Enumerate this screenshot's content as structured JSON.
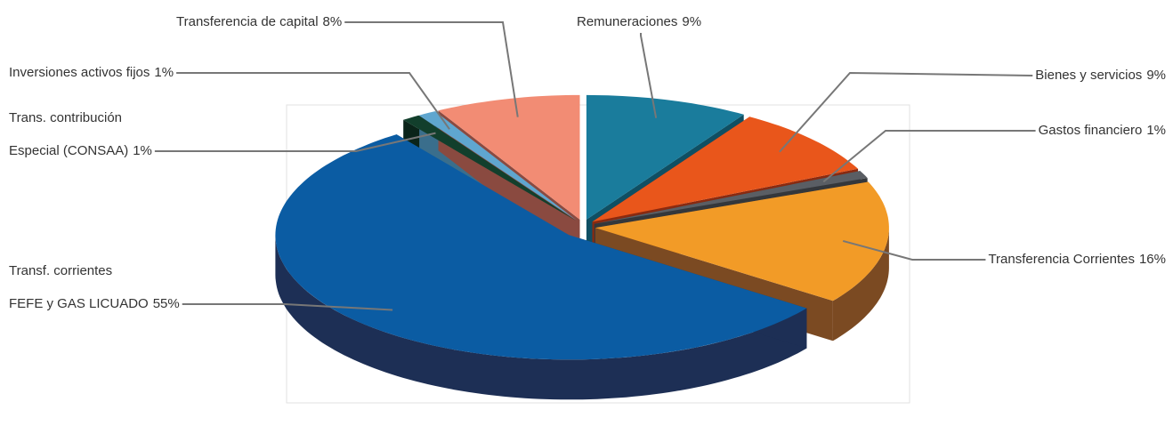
{
  "chart_data": {
    "type": "pie3d",
    "categories": [
      "Remuneraciones",
      "Bienes y servicios",
      "Gastos financiero",
      "Transferencia Corrientes",
      [
        "Transf. corrientes",
        "FEFE y GAS LICUADO"
      ],
      [
        "Trans. contribución",
        "Especial (CONSAA)"
      ],
      "Inversiones activos fijos",
      "Transferencia de capital"
    ],
    "values": [
      9,
      9,
      1,
      16,
      55,
      1,
      1,
      8
    ],
    "value_labels": [
      "9%",
      "9%",
      "1%",
      "16%",
      "55%",
      "1%",
      "1%",
      "8%"
    ],
    "colors": [
      "#1a7c9c",
      "#e9561b",
      "#5a5e64",
      "#f29b27",
      "#0b5ca3",
      "#123f2c",
      "#5fa6cf",
      "#f28c74"
    ],
    "side_colors": [
      "#0f4f63",
      "#8a2a10",
      "#34373b",
      "#7b4a22",
      "#1d2f55",
      "#0a2419",
      "#3a6e8c",
      "#8a4a40"
    ]
  }
}
